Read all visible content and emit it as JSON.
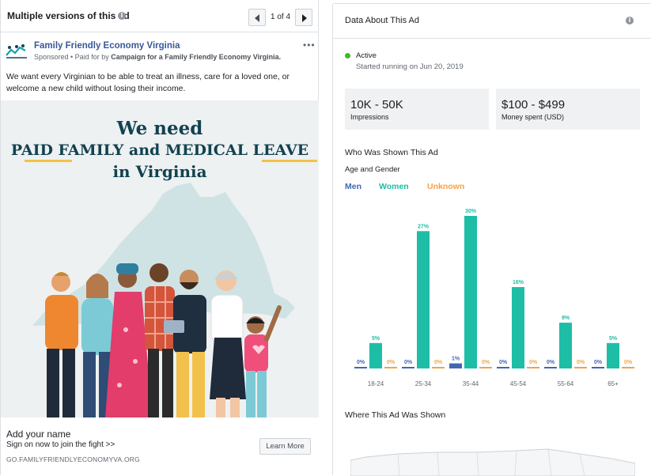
{
  "ad_panel": {
    "header_title": "Multiple versions of this ad",
    "pager_count": "1 of 4",
    "advertiser_name": "Family Friendly Economy Virginia",
    "sponsored_prefix": "Sponsored • Paid for by ",
    "paid_for_by": "Campaign for a Family Friendly Economy Virginia.",
    "more_menu": "•••",
    "body_text": "We want every Virginian to be able to treat an illness, care for a loved one, or welcome a new child without losing their income.",
    "creative": {
      "headline_line1": "We need",
      "headline_line2": "PAID FAMILY and MEDICAL LEAVE",
      "headline_line3": "in Virginia",
      "colors": {
        "navy": "#124251",
        "gold": "#f2c14b",
        "map": "#cfe3e5",
        "background": "#eef1f1"
      }
    },
    "cta": {
      "title": "Add your name",
      "subtitle": "Sign on now to join the fight >>",
      "url": "GO.FAMILYFRIENDLYECONOMYVA.ORG",
      "button_label": "Learn More"
    }
  },
  "data_panel": {
    "header_title": "Data About This Ad",
    "status_label": "Active",
    "started": "Started running on Jun 20, 2019",
    "impressions_value": "10K - 50K",
    "impressions_label": "Impressions",
    "spend_value": "$100 - $499",
    "spend_label": "Money spent (USD)",
    "who_title": "Who Was Shown This Ad",
    "age_gender_title": "Age and Gender",
    "where_title": "Where This Ad Was Shown",
    "colors": {
      "men": "#4267b2",
      "women": "#1dbda6",
      "unknown": "#f5a14b",
      "active": "#42b72a"
    }
  },
  "chart_data": {
    "type": "bar",
    "categories": [
      "18-24",
      "25-34",
      "35-44",
      "45-54",
      "55-64",
      "65+"
    ],
    "series": [
      {
        "name": "Men",
        "color": "#4267b2",
        "values": [
          0,
          0,
          1,
          0,
          0,
          0
        ]
      },
      {
        "name": "Women",
        "color": "#1dbda6",
        "values": [
          5,
          27,
          30,
          16,
          9,
          5
        ]
      },
      {
        "name": "Unknown",
        "color": "#f5a14b",
        "values": [
          0,
          0,
          0,
          0,
          0,
          0
        ]
      }
    ],
    "data_labels": [
      [
        "0%",
        "5%",
        "0%"
      ],
      [
        "0%",
        "27%",
        "0%"
      ],
      [
        "1%",
        "30%",
        "0%"
      ],
      [
        "0%",
        "16%",
        "0%"
      ],
      [
        "0%",
        "9%",
        "0%"
      ],
      [
        "0%",
        "5%",
        "0%"
      ]
    ],
    "ylim": [
      0,
      30
    ],
    "grid": false,
    "legend_placement": "top-left"
  }
}
